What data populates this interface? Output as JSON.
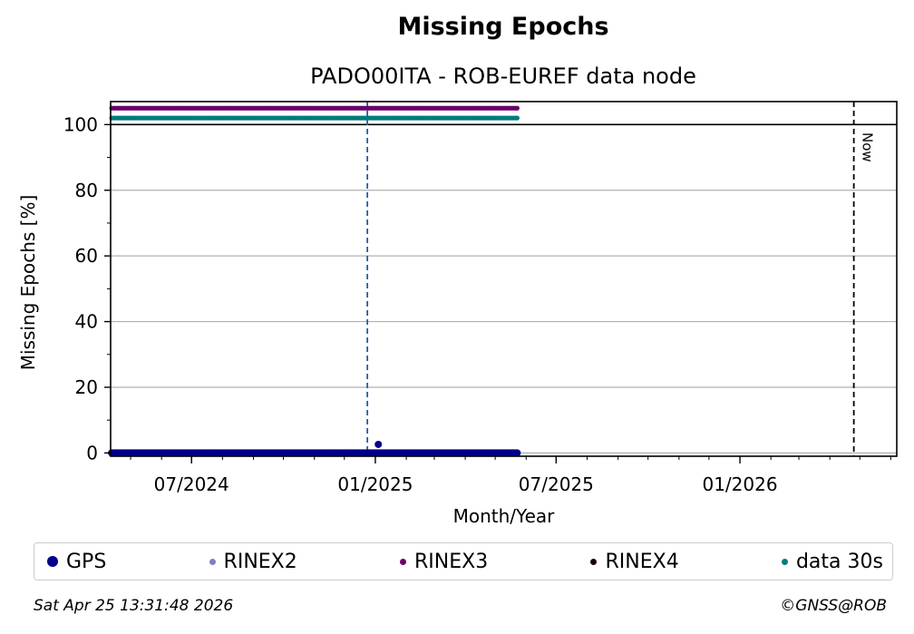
{
  "chart_data": {
    "type": "scatter",
    "title": "Missing Epochs",
    "subtitle": "PADO00ITA - ROB-EUREF data node",
    "xlabel": "Month/Year",
    "ylabel": "Missing Epochs [%]",
    "xlim": [
      "2024-04-11",
      "2026-06-07"
    ],
    "ylim": [
      -1,
      107
    ],
    "x_ticks": [
      "2024-07-01",
      "2025-01-01",
      "2025-07-01",
      "2026-01-01"
    ],
    "x_tick_labels": [
      "07/2024",
      "01/2025",
      "07/2025",
      "01/2026"
    ],
    "y_ticks": [
      0,
      20,
      40,
      60,
      80,
      100
    ],
    "y_tick_labels": [
      "0",
      "20",
      "40",
      "60",
      "80",
      "100"
    ],
    "grid": "horizontal",
    "reference_lines": [
      {
        "type": "horizontal",
        "y": 100,
        "style": "solid",
        "color": "#000000"
      },
      {
        "type": "vertical",
        "x": "2024-12-24",
        "style": "dashed",
        "color": "#1f5fa8"
      },
      {
        "type": "vertical",
        "x": "2026-04-25",
        "style": "dashed",
        "color": "#000000",
        "label": "Now"
      }
    ],
    "series": [
      {
        "name": "GPS",
        "color": "#00008b",
        "marker_size": 4.0,
        "constant": {
          "y": 0,
          "from": "2024-04-12",
          "to": "2025-05-23",
          "step_days": 1
        },
        "extra_points": [
          {
            "x": "2025-01-04",
            "y": 2.6
          }
        ]
      },
      {
        "name": "RINEX2",
        "color": "#8080c0",
        "marker_size": 2.6,
        "points": []
      },
      {
        "name": "RINEX3",
        "color": "#6a006a",
        "marker_size": 2.6,
        "constant": {
          "y": 105,
          "from": "2024-04-12",
          "to": "2025-05-23",
          "step_days": 2
        }
      },
      {
        "name": "RINEX4",
        "color": "#1a0010",
        "marker_size": 2.6,
        "points": []
      },
      {
        "name": "data 30s",
        "color": "#007b7b",
        "marker_size": 2.6,
        "constant": {
          "y": 102,
          "from": "2024-04-12",
          "to": "2025-05-23",
          "step_days": 2
        }
      }
    ]
  },
  "legend": {
    "items": [
      {
        "label": "GPS",
        "color": "#00008b",
        "size": 12
      },
      {
        "label": "RINEX2",
        "color": "#8080c0",
        "size": 7
      },
      {
        "label": "RINEX3",
        "color": "#6a006a",
        "size": 7
      },
      {
        "label": "RINEX4",
        "color": "#1a0010",
        "size": 7
      },
      {
        "label": "data 30s",
        "color": "#007b7b",
        "size": 7
      }
    ]
  },
  "footer": {
    "timestamp": "Sat Apr 25 13:31:48 2026",
    "copyright": "©GNSS@ROB"
  }
}
